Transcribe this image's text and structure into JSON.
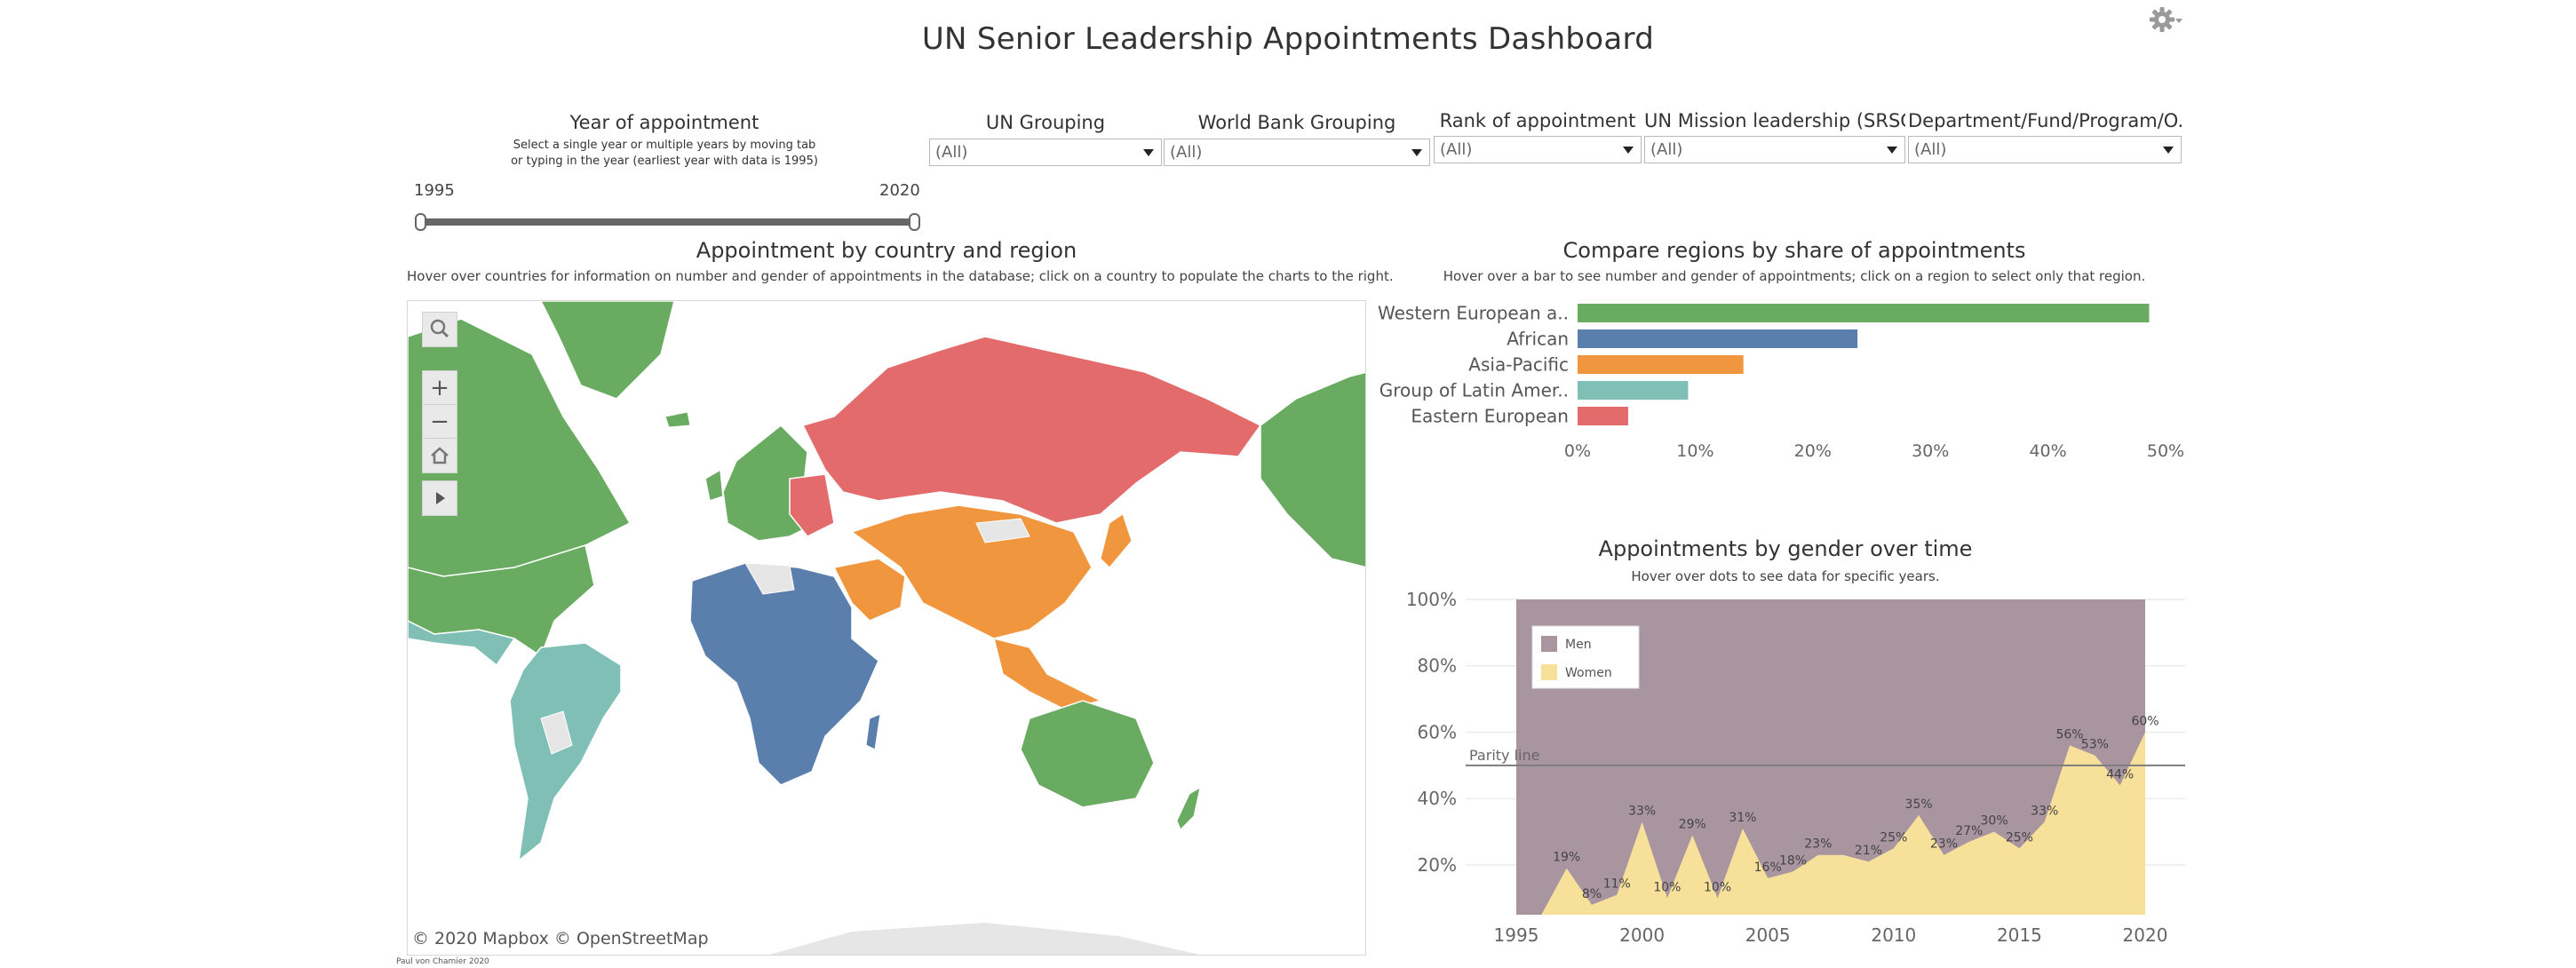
{
  "title": "UN Senior Leadership Appointments Dashboard",
  "icons": {
    "settings": "gear-icon"
  },
  "year_filter": {
    "label": "Year of appointment",
    "help_line1": "Select a single year or multiple years by moving tab",
    "help_line2": "or typing in the year (earliest year with data is 1995)",
    "min": "1995",
    "max": "2020"
  },
  "filters": [
    {
      "label": "UN Grouping",
      "value": "(All)"
    },
    {
      "label": "World Bank Grouping",
      "value": "(All)"
    },
    {
      "label": "Rank of appointment",
      "value": "(All)"
    },
    {
      "label": "UN Mission leadership (SRSG...",
      "value": "(All)"
    },
    {
      "label": "Department/Fund/Program/O...",
      "value": "(All)"
    }
  ],
  "map": {
    "title": "Appointment by country and region",
    "subtitle": "Hover over countries for information on number and gender of appointments in the database; click on a country to populate the charts to the right.",
    "credit": "© 2020 Mapbox  © OpenStreetMap",
    "author": "Paul von Chamier 2020",
    "region_colors": {
      "Western European and Others": "#6aab62",
      "African": "#5b7fac",
      "Asia-Pacific": "#f0963f",
      "Group of Latin American and Caribbean": "#7fbfb6",
      "Eastern European": "#e36b6b",
      "No data": "#e6e6e6"
    }
  },
  "charts": {
    "regions": {
      "title": "Compare regions by share of appointments",
      "subtitle": "Hover over a bar to see number and gender of appointments; click on a region to select only that region."
    },
    "gender": {
      "title": "Appointments by gender over time",
      "subtitle": "Hover over dots to see data for specific years.",
      "legend": [
        "Men",
        "Women"
      ],
      "parity_label": "Parity line"
    }
  },
  "chart_data": [
    {
      "type": "bar",
      "orientation": "horizontal",
      "categories": [
        "Western European a..",
        "African",
        "Asia-Pacific",
        "Group of Latin Amer..",
        "Eastern European"
      ],
      "values": [
        48.6,
        23.8,
        14.1,
        9.4,
        4.3
      ],
      "colors": [
        "#6aab62",
        "#5b7fac",
        "#f0963f",
        "#7fbfb6",
        "#e36b6b"
      ],
      "xlim": [
        0,
        50
      ],
      "xticks": [
        "0%",
        "10%",
        "20%",
        "30%",
        "40%",
        "50%"
      ],
      "grid": false
    },
    {
      "type": "area",
      "x": [
        1996,
        1997,
        1998,
        1999,
        2000,
        2001,
        2002,
        2003,
        2004,
        2005,
        2006,
        2007,
        2008,
        2009,
        2010,
        2011,
        2012,
        2013,
        2014,
        2015,
        2016,
        2017,
        2018,
        2019,
        2020
      ],
      "women_pct": [
        0,
        19,
        8,
        11,
        33,
        10,
        29,
        10,
        31,
        16,
        18,
        23,
        23,
        21,
        25,
        35,
        23,
        27,
        30,
        25,
        33,
        56,
        53,
        44,
        60
      ],
      "labels": [
        "",
        "19%",
        "8%",
        "11%",
        "33%",
        "10%",
        "29%",
        "10%",
        "31%",
        "16%",
        "18%",
        "23%",
        "",
        "21%",
        "25%",
        "35%",
        "23%",
        "27%",
        "30%",
        "25%",
        "33%",
        "56%",
        "53%",
        "44%",
        "60%"
      ],
      "series": [
        {
          "name": "Men",
          "color": "#a8959f"
        },
        {
          "name": "Women",
          "color": "#f7e09a"
        }
      ],
      "parity": 50,
      "xlim": [
        1995,
        2020
      ],
      "ylim": [
        5,
        100
      ],
      "xticks": [
        "1995",
        "2000",
        "2005",
        "2010",
        "2015",
        "2020"
      ],
      "yticks": [
        "20%",
        "40%",
        "60%",
        "80%",
        "100%"
      ],
      "legend_position": "top-left"
    }
  ]
}
